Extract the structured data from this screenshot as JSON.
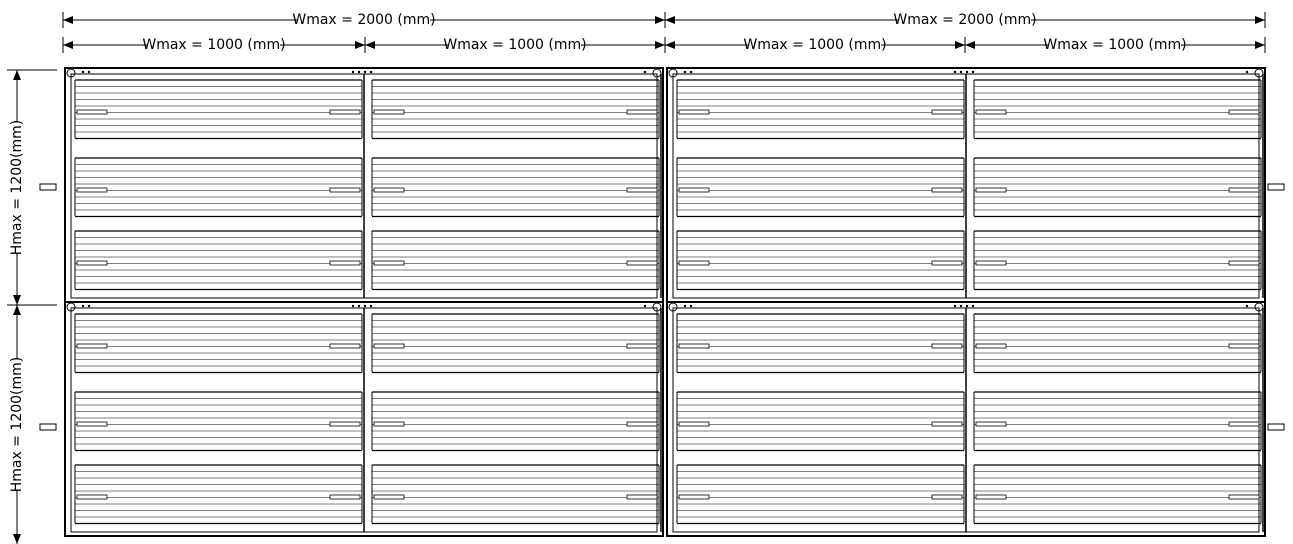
{
  "dimensions": {
    "width_total": [
      "Wmax = 2000 (mm)",
      "Wmax = 2000 (mm)"
    ],
    "width_module": [
      "Wmax = 1000 (mm)",
      "Wmax = 1000 (mm)",
      "Wmax = 1000 (mm)",
      "Wmax = 1000 (mm)"
    ],
    "height_module": [
      "Hmax = 1200(mm)",
      "Hmax = 1200(mm)"
    ]
  }
}
